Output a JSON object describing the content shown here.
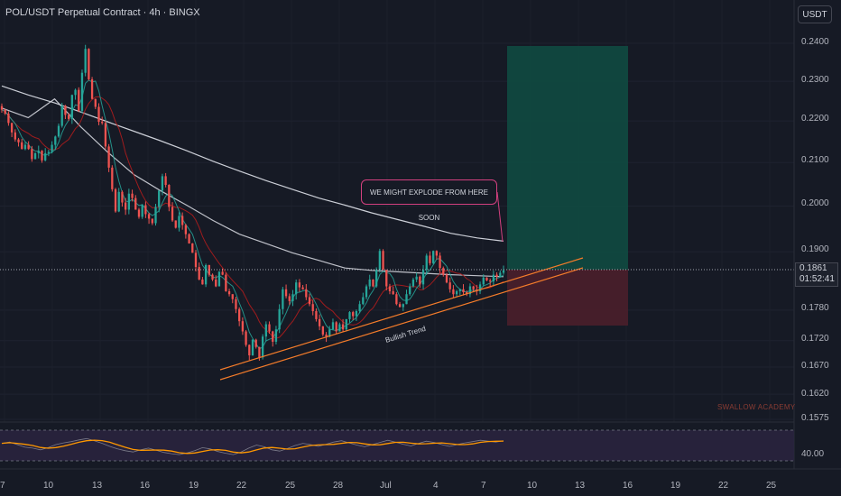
{
  "header": {
    "title": "POL/USDT Perpetual Contract · 4h · BINGX",
    "unit_button": "USDT"
  },
  "price_axis": {
    "ticks": [
      "0.2400",
      "0.2300",
      "0.2200",
      "0.2100",
      "0.2000",
      "0.1900",
      "0.1780",
      "0.1720",
      "0.1670",
      "0.1620",
      "0.1575"
    ],
    "current_price": "0.1861",
    "countdown": "01:52:41"
  },
  "rsi_axis": {
    "tick": "40.00"
  },
  "time_axis": {
    "labels": [
      "7",
      "10",
      "13",
      "16",
      "19",
      "22",
      "25",
      "28",
      "Jul",
      "4",
      "7",
      "10",
      "13",
      "16",
      "19",
      "22",
      "25"
    ]
  },
  "annotations": {
    "callout": "WE MIGHT EXPLODE FROM HERE SOON",
    "trend_label": "Bullish Trend",
    "watermark": "SWALLOW ACADEMY"
  },
  "colors": {
    "background": "#161a25",
    "up_candle": "#26a69a",
    "down_candle": "#ef5350",
    "ma_slow": "#e0e3eb",
    "ma_fast": "#d1d4dc",
    "ma_red": "#b71c1c",
    "ma_teal": "#26a69a",
    "trendline": "#f57c2a",
    "target_zone": "#0f4a41",
    "stop_zone": "#4a1f2b",
    "rsi_line": "#ff9800",
    "rsi_fill": "#2a2540",
    "callout_border": "#d3407f"
  },
  "chart_data": {
    "type": "candlestick",
    "symbol": "POL/USDT",
    "timeframe": "4h",
    "ylim": [
      0.1575,
      0.243
    ],
    "scale": "log",
    "candles_close": [
      0.2228,
      0.2218,
      0.2195,
      0.2172,
      0.2155,
      0.2148,
      0.2132,
      0.2142,
      0.2132,
      0.2108,
      0.2122,
      0.2128,
      0.2105,
      0.2122,
      0.2125,
      0.2142,
      0.2162,
      0.2188,
      0.2238,
      0.2215,
      0.2205,
      0.2265,
      0.2278,
      0.2225,
      0.2322,
      0.2385,
      0.2305,
      0.2255,
      0.2235,
      0.2198,
      0.2195,
      0.2138,
      0.2088,
      0.2038,
      0.1988,
      0.2032,
      0.2008,
      0.1992,
      0.2028,
      0.2018,
      0.1992,
      0.1976,
      0.2002,
      0.1982,
      0.1972,
      0.1962,
      0.1998,
      0.2035,
      0.2068,
      0.2048,
      0.1998,
      0.1968,
      0.1952,
      0.1978,
      0.1958,
      0.1938,
      0.1918,
      0.1898,
      0.1868,
      0.1842,
      0.1832,
      0.1872,
      0.1852,
      0.1842,
      0.1828,
      0.1858,
      0.1852,
      0.1818,
      0.1812,
      0.1802,
      0.1782,
      0.1758,
      0.1738,
      0.1712,
      0.1692,
      0.1722,
      0.1708,
      0.1688,
      0.1728,
      0.1752,
      0.1738,
      0.1718,
      0.1742,
      0.1782,
      0.1822,
      0.1808,
      0.1798,
      0.1812,
      0.1836,
      0.1826,
      0.1822,
      0.1806,
      0.1792,
      0.1778,
      0.1762,
      0.1748,
      0.1732,
      0.1728,
      0.1742,
      0.1756,
      0.1738,
      0.1752,
      0.1742,
      0.1762,
      0.1776,
      0.1768,
      0.1778,
      0.1792,
      0.1806,
      0.1828,
      0.1842,
      0.1828,
      0.1862,
      0.1902,
      0.1862,
      0.1828,
      0.1818,
      0.1812,
      0.1792,
      0.1786,
      0.1792,
      0.1812,
      0.1828,
      0.1842,
      0.1848,
      0.1832,
      0.1862,
      0.1892,
      0.1876,
      0.1902,
      0.1892,
      0.1866,
      0.1852,
      0.1836,
      0.1822,
      0.1812,
      0.1818,
      0.1822,
      0.1816,
      0.1812,
      0.1828,
      0.1822,
      0.1818,
      0.1832,
      0.1846,
      0.184,
      0.1838,
      0.1852,
      0.1848,
      0.1856,
      0.1861
    ],
    "moving_averages": [
      {
        "values": [
          0.2288,
          0.2265,
          0.2245,
          0.2222,
          0.2198,
          0.2175,
          0.2152,
          0.2128,
          0.2103,
          0.208,
          0.2058,
          0.2038,
          0.2018,
          0.2002,
          0.1985,
          0.197,
          0.1955,
          0.194,
          0.193,
          0.1923
        ]
      },
      {
        "values": [
          0.2232,
          0.2208,
          0.2255,
          0.2185,
          0.2125,
          0.2072,
          0.2035,
          0.2002,
          0.1968,
          0.1938,
          0.1918,
          0.1898,
          0.1882,
          0.1866,
          0.1861,
          0.1858,
          0.1855,
          0.1852,
          0.185,
          0.1848
        ]
      }
    ],
    "trade_setup": {
      "entry": 0.1861,
      "target": 0.2385,
      "stop": 0.1752
    },
    "rsi": {
      "levels": [
        70,
        30
      ],
      "ylim": [
        0,
        100
      ],
      "values": [
        55,
        58,
        52,
        46,
        44,
        40,
        45,
        52,
        56,
        59,
        63,
        66,
        61,
        55,
        48,
        42,
        38,
        35,
        40,
        44,
        39,
        34,
        31,
        29,
        33,
        38,
        45,
        42,
        36,
        32,
        29,
        35,
        44,
        51,
        47,
        40,
        37,
        43,
        50,
        55,
        52,
        48,
        53,
        58,
        61,
        56,
        51,
        47,
        52,
        57,
        62,
        58,
        53,
        49,
        55,
        60,
        57,
        52,
        48,
        52,
        56,
        59,
        62,
        60,
        58,
        61
      ]
    },
    "x_tick_labels": [
      "7",
      "10",
      "13",
      "16",
      "19",
      "22",
      "25",
      "28",
      "Jul",
      "4",
      "7",
      "10",
      "13",
      "16",
      "19",
      "22",
      "25"
    ],
    "y_tick_labels": [
      "0.2400",
      "0.2300",
      "0.2200",
      "0.2100",
      "0.2000",
      "0.1900",
      "0.1780",
      "0.1720",
      "0.1670",
      "0.1620",
      "0.1575"
    ]
  }
}
